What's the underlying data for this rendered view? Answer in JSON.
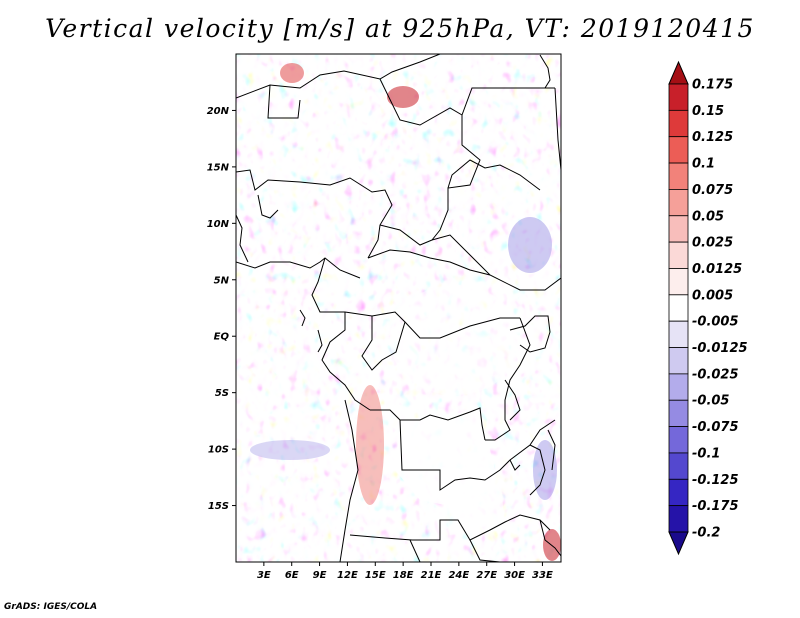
{
  "title": "Vertical velocity [m/s] at 925hPa, VT: 2019120415",
  "credit": "GrADS: IGES/COLA",
  "map": {
    "lon_range": [
      0,
      35
    ],
    "lat_range": [
      -20,
      25
    ],
    "lat_ticks": [
      {
        "value": 20,
        "label": "20N"
      },
      {
        "value": 15,
        "label": "15N"
      },
      {
        "value": 10,
        "label": "10N"
      },
      {
        "value": 5,
        "label": "5N"
      },
      {
        "value": 0,
        "label": "EQ"
      },
      {
        "value": -5,
        "label": "5S"
      },
      {
        "value": -10,
        "label": "10S"
      },
      {
        "value": -15,
        "label": "15S"
      }
    ],
    "lon_ticks": [
      {
        "value": 3,
        "label": "3E"
      },
      {
        "value": 6,
        "label": "6E"
      },
      {
        "value": 9,
        "label": "9E"
      },
      {
        "value": 12,
        "label": "12E"
      },
      {
        "value": 15,
        "label": "15E"
      },
      {
        "value": 18,
        "label": "18E"
      },
      {
        "value": 21,
        "label": "21E"
      },
      {
        "value": 24,
        "label": "24E"
      },
      {
        "value": 27,
        "label": "27E"
      },
      {
        "value": 30,
        "label": "30E"
      },
      {
        "value": 33,
        "label": "33E"
      }
    ]
  },
  "colorbar": {
    "labels": [
      "0.175",
      "0.15",
      "0.125",
      "0.1",
      "0.075",
      "0.05",
      "0.025",
      "0.0125",
      "0.005",
      "-0.005",
      "-0.0125",
      "-0.025",
      "-0.05",
      "-0.075",
      "-0.1",
      "-0.125",
      "-0.175",
      "-0.2"
    ],
    "colors": [
      "#a50f15",
      "#c8202a",
      "#de3a3a",
      "#ec5d56",
      "#f2827a",
      "#f5a099",
      "#f8bebb",
      "#fbd9d7",
      "#fdeeed",
      "#ffffff",
      "#e6e3f6",
      "#cfcaf0",
      "#b3aceb",
      "#958be3",
      "#7468da",
      "#5448cf",
      "#3526c3",
      "#2513a8",
      "#1a0a8c"
    ]
  }
}
